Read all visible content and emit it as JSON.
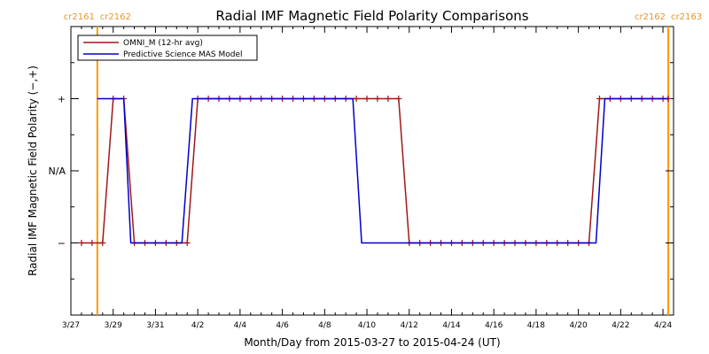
{
  "chart_data": {
    "type": "line",
    "title": "Radial IMF Magnetic Field Polarity Comparisons",
    "xlabel": "Month/Day from 2015-03-27 to 2015-04-24 (UT)",
    "ylabel": "Radial IMF Magnetic Field Polarity (−,+)",
    "xlim": [
      "2015-03-27T00:00",
      "2015-04-24T12:00"
    ],
    "ylim": [
      -2,
      2
    ],
    "x_ticks": [
      "3/27",
      "3/29",
      "3/31",
      "4/2",
      "4/4",
      "4/6",
      "4/8",
      "4/10",
      "4/12",
      "4/14",
      "4/16",
      "4/18",
      "4/20",
      "4/22",
      "4/24"
    ],
    "y_ticks": [
      {
        "value": 1,
        "label": "+"
      },
      {
        "value": 0,
        "label": "N/A"
      },
      {
        "value": -1,
        "label": "−"
      }
    ],
    "legend": {
      "placement": "top-left",
      "entries": [
        {
          "label": "OMNI_M (12-hr avg)",
          "color": "#a01818"
        },
        {
          "label": "Predictive Science MAS Model",
          "color": "#0000cc"
        }
      ]
    },
    "carrington_markers": [
      {
        "date": "2015-03-28T06:00",
        "label_left": "cr2161",
        "label_right": "cr2162",
        "color": "#ff9900"
      },
      {
        "date": "2015-04-24T06:00",
        "label_left": "cr2162",
        "label_right": "cr2163",
        "color": "#ff9900"
      }
    ],
    "series": [
      {
        "name": "OMNI_M (12-hr avg)",
        "color": "#a01818",
        "marker": "+",
        "points": [
          [
            "2015-03-27T12:00",
            -1
          ],
          [
            "2015-03-28T00:00",
            -1
          ],
          [
            "2015-03-28T12:00",
            -1
          ],
          [
            "2015-03-29T00:00",
            1
          ],
          [
            "2015-03-29T12:00",
            1
          ],
          [
            "2015-03-30T00:00",
            -1
          ],
          [
            "2015-03-30T12:00",
            -1
          ],
          [
            "2015-03-31T00:00",
            -1
          ],
          [
            "2015-03-31T12:00",
            -1
          ],
          [
            "2015-04-01T00:00",
            -1
          ],
          [
            "2015-04-01T12:00",
            -1
          ],
          [
            "2015-04-02T00:00",
            1
          ],
          [
            "2015-04-02T12:00",
            1
          ],
          [
            "2015-04-03T00:00",
            1
          ],
          [
            "2015-04-03T12:00",
            1
          ],
          [
            "2015-04-04T00:00",
            1
          ],
          [
            "2015-04-04T12:00",
            1
          ],
          [
            "2015-04-05T00:00",
            1
          ],
          [
            "2015-04-05T12:00",
            1
          ],
          [
            "2015-04-06T00:00",
            1
          ],
          [
            "2015-04-06T12:00",
            1
          ],
          [
            "2015-04-07T00:00",
            1
          ],
          [
            "2015-04-07T12:00",
            1
          ],
          [
            "2015-04-08T00:00",
            1
          ],
          [
            "2015-04-08T12:00",
            1
          ],
          [
            "2015-04-09T00:00",
            1
          ],
          [
            "2015-04-09T12:00",
            1
          ],
          [
            "2015-04-10T00:00",
            1
          ],
          [
            "2015-04-10T12:00",
            1
          ],
          [
            "2015-04-11T00:00",
            1
          ],
          [
            "2015-04-11T12:00",
            1
          ],
          [
            "2015-04-12T00:00",
            -1
          ],
          [
            "2015-04-12T12:00",
            -1
          ],
          [
            "2015-04-13T00:00",
            -1
          ],
          [
            "2015-04-13T12:00",
            -1
          ],
          [
            "2015-04-14T00:00",
            -1
          ],
          [
            "2015-04-14T12:00",
            -1
          ],
          [
            "2015-04-15T00:00",
            -1
          ],
          [
            "2015-04-15T12:00",
            -1
          ],
          [
            "2015-04-16T00:00",
            -1
          ],
          [
            "2015-04-16T12:00",
            -1
          ],
          [
            "2015-04-17T00:00",
            -1
          ],
          [
            "2015-04-17T12:00",
            -1
          ],
          [
            "2015-04-18T00:00",
            -1
          ],
          [
            "2015-04-18T12:00",
            -1
          ],
          [
            "2015-04-19T00:00",
            -1
          ],
          [
            "2015-04-19T12:00",
            -1
          ],
          [
            "2015-04-20T00:00",
            -1
          ],
          [
            "2015-04-20T12:00",
            -1
          ],
          [
            "2015-04-21T00:00",
            1
          ],
          [
            "2015-04-21T12:00",
            1
          ],
          [
            "2015-04-22T00:00",
            1
          ],
          [
            "2015-04-22T12:00",
            1
          ],
          [
            "2015-04-23T00:00",
            1
          ],
          [
            "2015-04-23T12:00",
            1
          ],
          [
            "2015-04-24T00:00",
            1
          ],
          [
            "2015-04-24T06:00",
            1
          ]
        ]
      },
      {
        "name": "Predictive Science MAS Model",
        "color": "#0000cc",
        "marker": "none",
        "points": [
          [
            "2015-03-28T06:00",
            1
          ],
          [
            "2015-03-29T12:00",
            1
          ],
          [
            "2015-03-29T20:00",
            -1
          ],
          [
            "2015-04-01T06:00",
            -1
          ],
          [
            "2015-04-01T18:00",
            1
          ],
          [
            "2015-04-09T08:00",
            1
          ],
          [
            "2015-04-09T18:00",
            -1
          ],
          [
            "2015-04-20T20:00",
            -1
          ],
          [
            "2015-04-21T06:00",
            1
          ],
          [
            "2015-04-24T06:00",
            1
          ]
        ]
      }
    ]
  }
}
